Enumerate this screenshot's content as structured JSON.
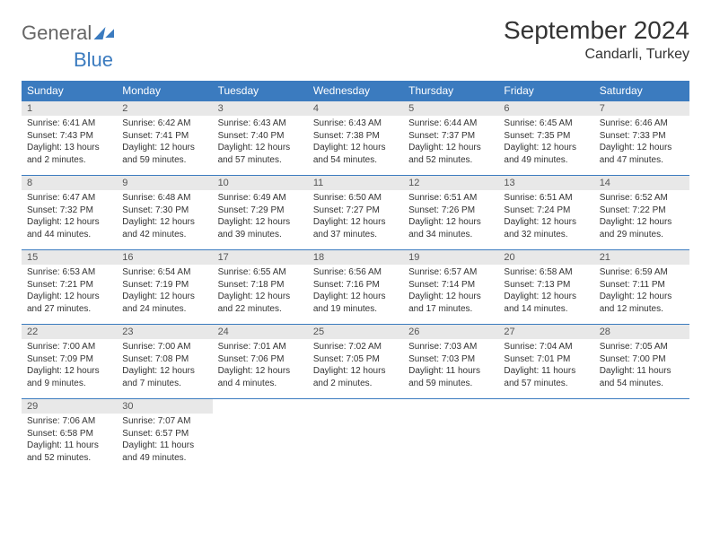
{
  "logo": {
    "part1": "General",
    "part2": "Blue"
  },
  "title": "September 2024",
  "location": "Candarli, Turkey",
  "colors": {
    "header_bg": "#3b7bbf",
    "header_text": "#ffffff",
    "daynum_bg": "#e8e8e8",
    "daynum_text": "#555555",
    "body_text": "#333333",
    "logo_gray": "#666666",
    "logo_blue": "#3b7bbf",
    "page_bg": "#ffffff"
  },
  "dow": [
    "Sunday",
    "Monday",
    "Tuesday",
    "Wednesday",
    "Thursday",
    "Friday",
    "Saturday"
  ],
  "weeks": [
    {
      "nums": [
        "1",
        "2",
        "3",
        "4",
        "5",
        "6",
        "7"
      ],
      "cells": [
        {
          "sunrise": "Sunrise: 6:41 AM",
          "sunset": "Sunset: 7:43 PM",
          "day1": "Daylight: 13 hours",
          "day2": "and 2 minutes."
        },
        {
          "sunrise": "Sunrise: 6:42 AM",
          "sunset": "Sunset: 7:41 PM",
          "day1": "Daylight: 12 hours",
          "day2": "and 59 minutes."
        },
        {
          "sunrise": "Sunrise: 6:43 AM",
          "sunset": "Sunset: 7:40 PM",
          "day1": "Daylight: 12 hours",
          "day2": "and 57 minutes."
        },
        {
          "sunrise": "Sunrise: 6:43 AM",
          "sunset": "Sunset: 7:38 PM",
          "day1": "Daylight: 12 hours",
          "day2": "and 54 minutes."
        },
        {
          "sunrise": "Sunrise: 6:44 AM",
          "sunset": "Sunset: 7:37 PM",
          "day1": "Daylight: 12 hours",
          "day2": "and 52 minutes."
        },
        {
          "sunrise": "Sunrise: 6:45 AM",
          "sunset": "Sunset: 7:35 PM",
          "day1": "Daylight: 12 hours",
          "day2": "and 49 minutes."
        },
        {
          "sunrise": "Sunrise: 6:46 AM",
          "sunset": "Sunset: 7:33 PM",
          "day1": "Daylight: 12 hours",
          "day2": "and 47 minutes."
        }
      ]
    },
    {
      "nums": [
        "8",
        "9",
        "10",
        "11",
        "12",
        "13",
        "14"
      ],
      "cells": [
        {
          "sunrise": "Sunrise: 6:47 AM",
          "sunset": "Sunset: 7:32 PM",
          "day1": "Daylight: 12 hours",
          "day2": "and 44 minutes."
        },
        {
          "sunrise": "Sunrise: 6:48 AM",
          "sunset": "Sunset: 7:30 PM",
          "day1": "Daylight: 12 hours",
          "day2": "and 42 minutes."
        },
        {
          "sunrise": "Sunrise: 6:49 AM",
          "sunset": "Sunset: 7:29 PM",
          "day1": "Daylight: 12 hours",
          "day2": "and 39 minutes."
        },
        {
          "sunrise": "Sunrise: 6:50 AM",
          "sunset": "Sunset: 7:27 PM",
          "day1": "Daylight: 12 hours",
          "day2": "and 37 minutes."
        },
        {
          "sunrise": "Sunrise: 6:51 AM",
          "sunset": "Sunset: 7:26 PM",
          "day1": "Daylight: 12 hours",
          "day2": "and 34 minutes."
        },
        {
          "sunrise": "Sunrise: 6:51 AM",
          "sunset": "Sunset: 7:24 PM",
          "day1": "Daylight: 12 hours",
          "day2": "and 32 minutes."
        },
        {
          "sunrise": "Sunrise: 6:52 AM",
          "sunset": "Sunset: 7:22 PM",
          "day1": "Daylight: 12 hours",
          "day2": "and 29 minutes."
        }
      ]
    },
    {
      "nums": [
        "15",
        "16",
        "17",
        "18",
        "19",
        "20",
        "21"
      ],
      "cells": [
        {
          "sunrise": "Sunrise: 6:53 AM",
          "sunset": "Sunset: 7:21 PM",
          "day1": "Daylight: 12 hours",
          "day2": "and 27 minutes."
        },
        {
          "sunrise": "Sunrise: 6:54 AM",
          "sunset": "Sunset: 7:19 PM",
          "day1": "Daylight: 12 hours",
          "day2": "and 24 minutes."
        },
        {
          "sunrise": "Sunrise: 6:55 AM",
          "sunset": "Sunset: 7:18 PM",
          "day1": "Daylight: 12 hours",
          "day2": "and 22 minutes."
        },
        {
          "sunrise": "Sunrise: 6:56 AM",
          "sunset": "Sunset: 7:16 PM",
          "day1": "Daylight: 12 hours",
          "day2": "and 19 minutes."
        },
        {
          "sunrise": "Sunrise: 6:57 AM",
          "sunset": "Sunset: 7:14 PM",
          "day1": "Daylight: 12 hours",
          "day2": "and 17 minutes."
        },
        {
          "sunrise": "Sunrise: 6:58 AM",
          "sunset": "Sunset: 7:13 PM",
          "day1": "Daylight: 12 hours",
          "day2": "and 14 minutes."
        },
        {
          "sunrise": "Sunrise: 6:59 AM",
          "sunset": "Sunset: 7:11 PM",
          "day1": "Daylight: 12 hours",
          "day2": "and 12 minutes."
        }
      ]
    },
    {
      "nums": [
        "22",
        "23",
        "24",
        "25",
        "26",
        "27",
        "28"
      ],
      "cells": [
        {
          "sunrise": "Sunrise: 7:00 AM",
          "sunset": "Sunset: 7:09 PM",
          "day1": "Daylight: 12 hours",
          "day2": "and 9 minutes."
        },
        {
          "sunrise": "Sunrise: 7:00 AM",
          "sunset": "Sunset: 7:08 PM",
          "day1": "Daylight: 12 hours",
          "day2": "and 7 minutes."
        },
        {
          "sunrise": "Sunrise: 7:01 AM",
          "sunset": "Sunset: 7:06 PM",
          "day1": "Daylight: 12 hours",
          "day2": "and 4 minutes."
        },
        {
          "sunrise": "Sunrise: 7:02 AM",
          "sunset": "Sunset: 7:05 PM",
          "day1": "Daylight: 12 hours",
          "day2": "and 2 minutes."
        },
        {
          "sunrise": "Sunrise: 7:03 AM",
          "sunset": "Sunset: 7:03 PM",
          "day1": "Daylight: 11 hours",
          "day2": "and 59 minutes."
        },
        {
          "sunrise": "Sunrise: 7:04 AM",
          "sunset": "Sunset: 7:01 PM",
          "day1": "Daylight: 11 hours",
          "day2": "and 57 minutes."
        },
        {
          "sunrise": "Sunrise: 7:05 AM",
          "sunset": "Sunset: 7:00 PM",
          "day1": "Daylight: 11 hours",
          "day2": "and 54 minutes."
        }
      ]
    },
    {
      "nums": [
        "29",
        "30",
        "",
        "",
        "",
        "",
        ""
      ],
      "cells": [
        {
          "sunrise": "Sunrise: 7:06 AM",
          "sunset": "Sunset: 6:58 PM",
          "day1": "Daylight: 11 hours",
          "day2": "and 52 minutes."
        },
        {
          "sunrise": "Sunrise: 7:07 AM",
          "sunset": "Sunset: 6:57 PM",
          "day1": "Daylight: 11 hours",
          "day2": "and 49 minutes."
        },
        null,
        null,
        null,
        null,
        null
      ]
    }
  ]
}
